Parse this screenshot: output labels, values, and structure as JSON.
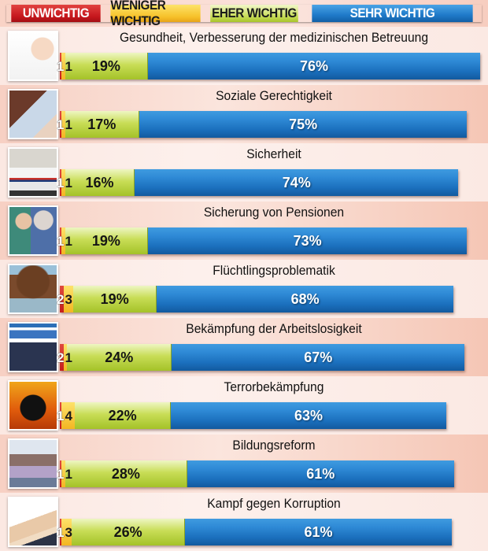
{
  "legend": {
    "unwichtig": "UNWICHTIG",
    "weniger_wichtig": "WENIGER WICHTIG",
    "eher_wichtig": "EHER WICHTIG",
    "sehr_wichtig": "SEHR WICHTIG"
  },
  "colors": {
    "unwichtig": "#c5201d",
    "weniger_wichtig": "#f3b622",
    "eher_wichtig": "#b5cd35",
    "sehr_wichtig": "#1f74c2"
  },
  "rows": [
    {
      "title": "Gesundheit, Verbesserung der medizinischen Betreuung",
      "u": "1",
      "w": "1",
      "e": "19%",
      "s": "76%",
      "photo": "doctor-photo"
    },
    {
      "title": "Soziale Gerechtigkeit",
      "u": "1",
      "w": "1",
      "e": "17%",
      "s": "75%",
      "photo": "money-photo"
    },
    {
      "title": "Sicherheit",
      "u": "1",
      "w": "1",
      "e": "16%",
      "s": "74%",
      "photo": "police-car-photo"
    },
    {
      "title": "Sicherung von Pensionen",
      "u": "1",
      "w": "1",
      "e": "19%",
      "s": "73%",
      "photo": "elderly-care-photo"
    },
    {
      "title": "Flüchtlingsproblematik",
      "u": "2",
      "w": "3",
      "e": "19%",
      "s": "68%",
      "photo": "refugee-boat-photo"
    },
    {
      "title": "Bekämpfung der Arbeitslosigkeit",
      "u": "2",
      "w": "1",
      "e": "24%",
      "s": "67%",
      "photo": "ams-sign-photo"
    },
    {
      "title": "Terrorbekämpfung",
      "u": "1",
      "w": "4",
      "e": "22%",
      "s": "63%",
      "photo": "terror-silhouette-photo"
    },
    {
      "title": "Bildungsreform",
      "u": "1",
      "w": "1",
      "e": "28%",
      "s": "61%",
      "photo": "classroom-photo"
    },
    {
      "title": "Kampf gegen Korruption",
      "u": "1",
      "w": "3",
      "e": "26%",
      "s": "61%",
      "photo": "bribe-photo"
    }
  ],
  "chart_data": {
    "type": "bar",
    "stacked": true,
    "orientation": "horizontal",
    "title": "",
    "categories": [
      "Gesundheit, Verbesserung der medizinischen Betreuung",
      "Soziale Gerechtigkeit",
      "Sicherheit",
      "Sicherung von Pensionen",
      "Flüchtlingsproblematik",
      "Bekämpfung der Arbeitslosigkeit",
      "Terrorbekämpfung",
      "Bildungsreform",
      "Kampf gegen Korruption"
    ],
    "series": [
      {
        "name": "UNWICHTIG",
        "color": "#c5201d",
        "values": [
          1,
          1,
          1,
          1,
          2,
          2,
          1,
          1,
          1
        ]
      },
      {
        "name": "WENIGER WICHTIG",
        "color": "#f3b622",
        "values": [
          1,
          1,
          1,
          1,
          3,
          1,
          4,
          1,
          3
        ]
      },
      {
        "name": "EHER WICHTIG",
        "color": "#b5cd35",
        "values": [
          19,
          17,
          16,
          19,
          19,
          24,
          22,
          28,
          26
        ]
      },
      {
        "name": "SEHR WICHTIG",
        "color": "#1f74c2",
        "values": [
          76,
          75,
          74,
          73,
          68,
          67,
          63,
          61,
          61
        ]
      }
    ],
    "unit": "%",
    "legend_position": "top",
    "grid": false
  }
}
